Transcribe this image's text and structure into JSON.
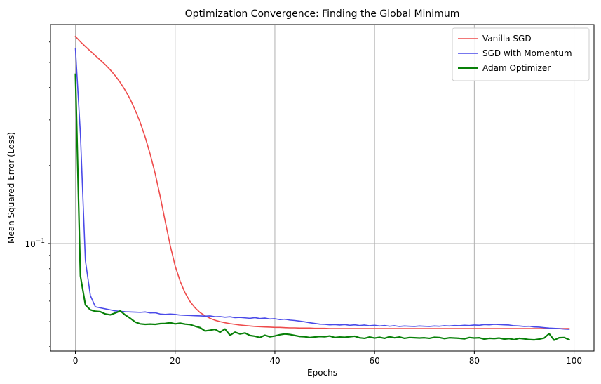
{
  "chart_data": {
    "type": "line",
    "title": "Optimization Convergence: Finding the Global Minimum",
    "xlabel": "Epochs",
    "ylabel": "Mean Squared Error (Loss)",
    "xlim": [
      -5,
      104
    ],
    "ylim": [
      0.0385,
      0.7
    ],
    "yscale": "log",
    "grid": true,
    "legend_position": "top-right",
    "x_ticks": [
      0,
      20,
      40,
      60,
      80,
      100
    ],
    "x_tick_labels": [
      "0",
      "20",
      "40",
      "60",
      "80",
      "100"
    ],
    "y_major_tick": 0.1,
    "y_major_tick_label_base": "10",
    "y_major_tick_label_exp": "−1",
    "series": [
      {
        "name": "Vanilla SGD",
        "color": "#ee4b4b",
        "width": 1.6,
        "values": [
          0.63,
          0.601,
          0.576,
          0.553,
          0.531,
          0.51,
          0.49,
          0.468,
          0.444,
          0.418,
          0.39,
          0.36,
          0.327,
          0.293,
          0.257,
          0.221,
          0.186,
          0.152,
          0.122,
          0.0985,
          0.082,
          0.0716,
          0.0645,
          0.0597,
          0.0565,
          0.0542,
          0.0527,
          0.0515,
          0.0506,
          0.05,
          0.0495,
          0.0491,
          0.0488,
          0.0485,
          0.0483,
          0.0481,
          0.0479,
          0.0478,
          0.0477,
          0.0476,
          0.0475,
          0.0475,
          0.0474,
          0.0473,
          0.0473,
          0.0472,
          0.0472,
          0.0472,
          0.0471,
          0.0471,
          0.0471,
          0.047,
          0.047,
          0.047,
          0.047,
          0.047,
          0.047,
          0.047,
          0.047,
          0.047,
          0.047,
          0.047,
          0.047,
          0.047,
          0.047,
          0.047,
          0.047,
          0.047,
          0.047,
          0.047,
          0.047,
          0.047,
          0.047,
          0.047,
          0.047,
          0.047,
          0.047,
          0.047,
          0.047,
          0.047,
          0.047,
          0.047,
          0.047,
          0.047,
          0.047,
          0.047,
          0.047,
          0.047,
          0.047,
          0.047,
          0.047,
          0.047,
          0.047,
          0.047,
          0.047,
          0.047,
          0.047,
          0.047,
          0.047,
          0.047
        ]
      },
      {
        "name": "SGD with Momentum",
        "color": "#4a4ae8",
        "width": 1.6,
        "values": [
          0.565,
          0.265,
          0.086,
          0.063,
          0.057,
          0.0565,
          0.056,
          0.0555,
          0.055,
          0.0548,
          0.0546,
          0.0545,
          0.0544,
          0.0543,
          0.0545,
          0.054,
          0.0541,
          0.0535,
          0.0533,
          0.0535,
          0.0533,
          0.053,
          0.0529,
          0.0528,
          0.0527,
          0.0526,
          0.0525,
          0.0526,
          0.0522,
          0.0523,
          0.052,
          0.0522,
          0.0518,
          0.0519,
          0.0517,
          0.0515,
          0.0518,
          0.0514,
          0.0516,
          0.0512,
          0.0513,
          0.0509,
          0.0511,
          0.0507,
          0.0505,
          0.0502,
          0.0499,
          0.0495,
          0.0492,
          0.0489,
          0.0488,
          0.0486,
          0.0487,
          0.0485,
          0.0487,
          0.0484,
          0.0486,
          0.0483,
          0.0485,
          0.0482,
          0.0484,
          0.0481,
          0.0483,
          0.048,
          0.0482,
          0.0479,
          0.0481,
          0.048,
          0.0479,
          0.0481,
          0.048,
          0.0479,
          0.0481,
          0.048,
          0.0482,
          0.0481,
          0.0483,
          0.0482,
          0.0484,
          0.0483,
          0.0485,
          0.0484,
          0.0487,
          0.0486,
          0.0488,
          0.0487,
          0.0486,
          0.0485,
          0.0482,
          0.0481,
          0.0479,
          0.048,
          0.0477,
          0.0476,
          0.0474,
          0.0472,
          0.0471,
          0.047,
          0.0468,
          0.0467
        ]
      },
      {
        "name": "Adam Optimizer",
        "color": "#088008",
        "width": 2.2,
        "values": [
          0.45,
          0.075,
          0.058,
          0.0555,
          0.0548,
          0.0546,
          0.0535,
          0.0531,
          0.054,
          0.055,
          0.053,
          0.0515,
          0.0498,
          0.049,
          0.0488,
          0.0489,
          0.0488,
          0.0491,
          0.0492,
          0.0495,
          0.049,
          0.0493,
          0.0489,
          0.0487,
          0.048,
          0.0474,
          0.046,
          0.0463,
          0.0467,
          0.0455,
          0.0468,
          0.0443,
          0.0455,
          0.0448,
          0.0452,
          0.0442,
          0.0439,
          0.0434,
          0.0443,
          0.0437,
          0.044,
          0.0445,
          0.0448,
          0.0446,
          0.0442,
          0.0438,
          0.0437,
          0.0434,
          0.0436,
          0.0438,
          0.0437,
          0.044,
          0.0434,
          0.0436,
          0.0435,
          0.0437,
          0.0439,
          0.0433,
          0.0431,
          0.0436,
          0.0432,
          0.0435,
          0.0431,
          0.0437,
          0.0433,
          0.0436,
          0.0431,
          0.0434,
          0.0433,
          0.0432,
          0.0433,
          0.0431,
          0.0435,
          0.0434,
          0.043,
          0.0433,
          0.0432,
          0.0431,
          0.0429,
          0.0434,
          0.0432,
          0.0433,
          0.0428,
          0.0431,
          0.043,
          0.0432,
          0.0428,
          0.043,
          0.0426,
          0.0431,
          0.0429,
          0.0426,
          0.0425,
          0.0428,
          0.0432,
          0.0449,
          0.0424,
          0.0433,
          0.0434,
          0.0426
        ]
      }
    ]
  }
}
